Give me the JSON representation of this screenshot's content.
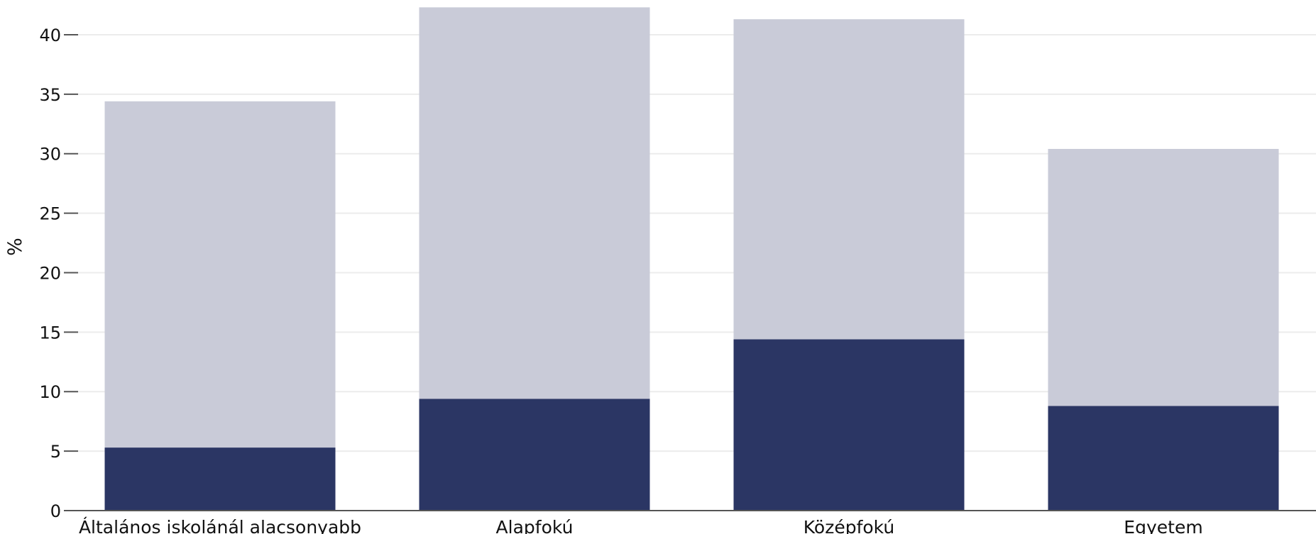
{
  "chart_data": {
    "type": "bar",
    "stacked": true,
    "title": "",
    "xlabel": "",
    "ylabel": "%",
    "ylim": [
      0,
      42.5
    ],
    "yticks": [
      0,
      5,
      10,
      15,
      20,
      25,
      30,
      35,
      40
    ],
    "grid": true,
    "legend": "none",
    "categories": [
      "Általános iskolánál alacsonyabb",
      "Alapfokú",
      "Középfokú",
      "Egyetem"
    ],
    "series": [
      {
        "values": [
          5.3,
          9.4,
          14.4,
          8.8
        ],
        "color": "#2b3664"
      },
      {
        "values": [
          29.1,
          32.9,
          26.9,
          21.6
        ],
        "color": "#c9cbd8"
      }
    ]
  }
}
